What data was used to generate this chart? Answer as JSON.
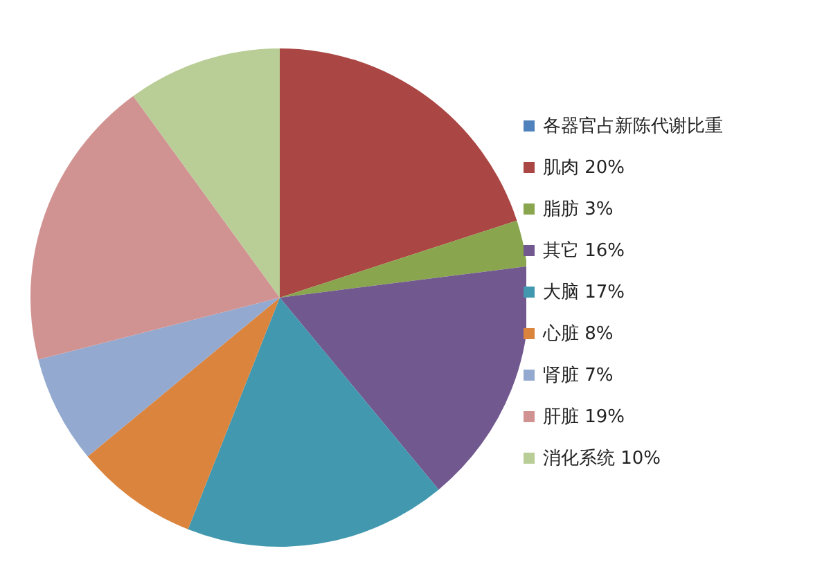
{
  "chart_data": {
    "type": "pie",
    "legend_title": "各器官占新陈代谢比重",
    "legend": "right",
    "categories": [
      "肌肉 20%",
      "脂肪 3%",
      "其它 16%",
      "大脑 17%",
      "心脏 8%",
      "肾脏 7%",
      "肝脏 19%",
      "消化系统 10%"
    ],
    "values": [
      20,
      3,
      16,
      17,
      8,
      7,
      19,
      10
    ],
    "colors": [
      "#aa4643",
      "#89a54e",
      "#71588f",
      "#4198af",
      "#db843d",
      "#93a9cf",
      "#d19392",
      "#b9cd96"
    ]
  }
}
